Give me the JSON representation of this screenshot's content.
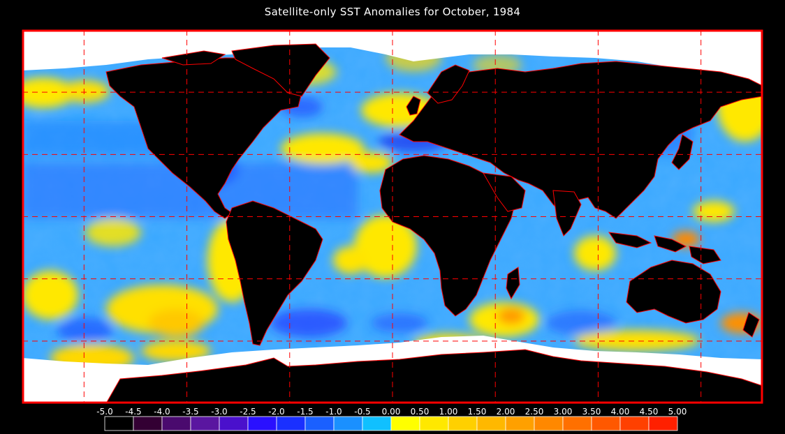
{
  "title": "Satellite-only SST Anomalies for October, 1984",
  "map": {
    "projection": "equirectangular",
    "frame_color": "#ff0000",
    "graticule_color": "#ff0000",
    "coastline_color": "#ff0000",
    "land_color": "#000000",
    "ice_no_data_color": "#ffffff",
    "graticule": {
      "longitudes": [
        -150,
        -100,
        -50,
        0,
        50,
        100,
        150
      ],
      "latitudes": [
        -60,
        -30,
        0,
        30,
        60
      ]
    }
  },
  "colorbar": {
    "tick_labels": [
      "-5.0",
      "-4.5",
      "-4.0",
      "-3.5",
      "-3.0",
      "-2.5",
      "-2.0",
      "-1.5",
      "-1.0",
      "-0.5",
      "0.00",
      "0.50",
      "1.00",
      "1.50",
      "2.00",
      "2.50",
      "3.00",
      "3.50",
      "4.00",
      "4.50",
      "5.00"
    ],
    "colors": [
      "#000000",
      "#330033",
      "#4a0a6e",
      "#5a16a0",
      "#4a10cc",
      "#2a10ff",
      "#1a30ff",
      "#1a60ff",
      "#1a90ff",
      "#10c0ff",
      "#ffff00",
      "#ffe800",
      "#ffd000",
      "#ffb800",
      "#ffa000",
      "#ff8800",
      "#ff7000",
      "#ff5800",
      "#ff4000",
      "#ff2000"
    ]
  }
}
